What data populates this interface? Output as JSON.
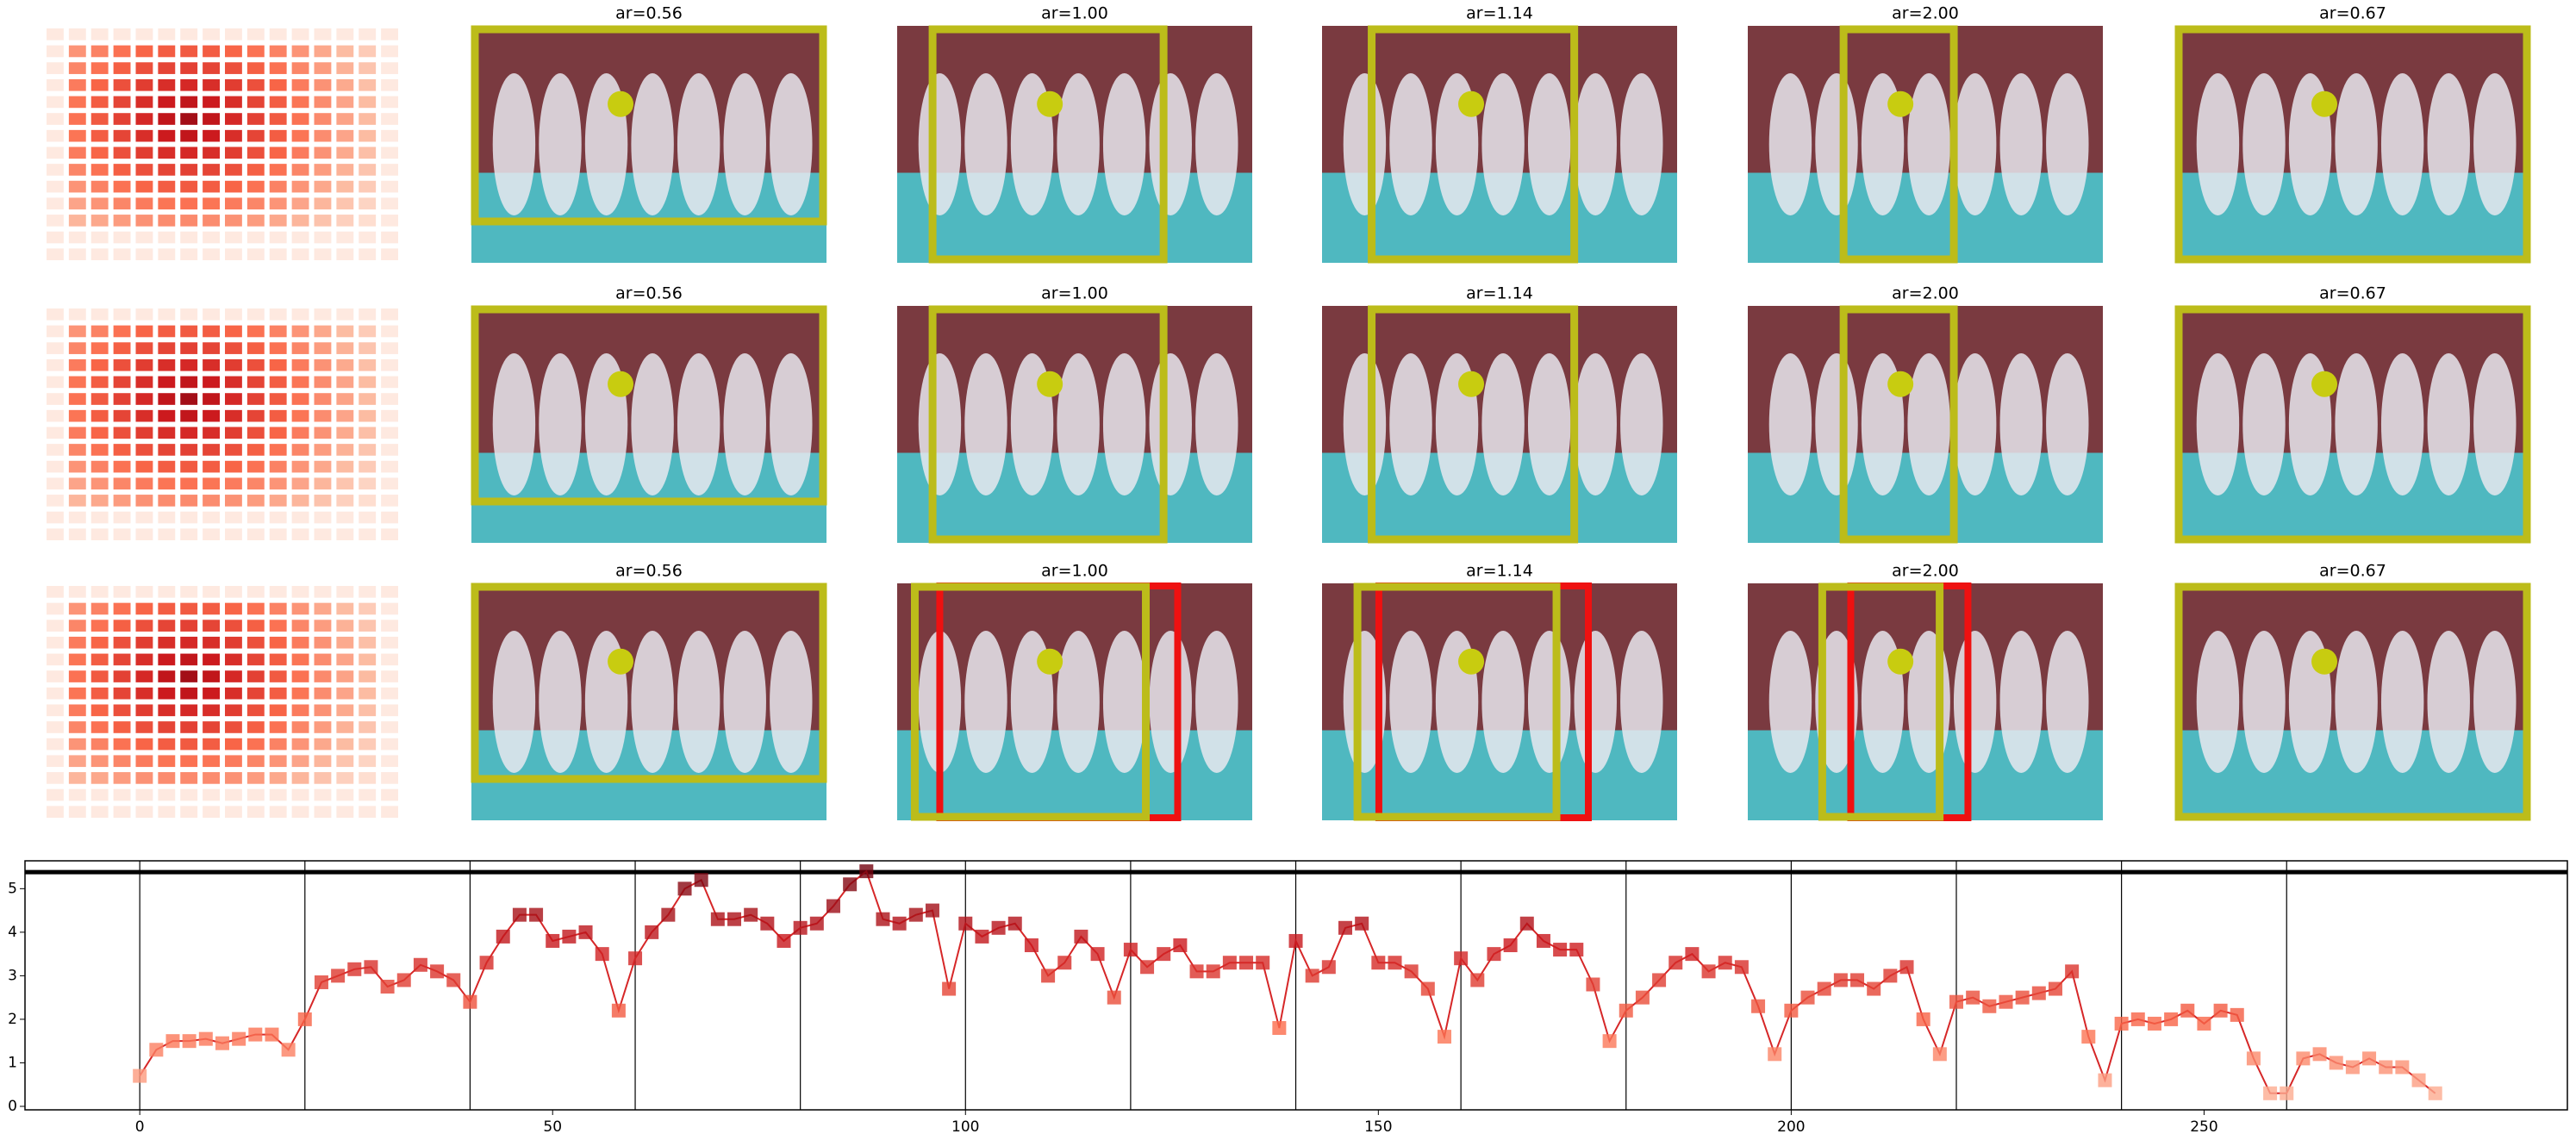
{
  "panel_titles": [
    [
      "ar=0.56",
      "ar=1.00",
      "ar=1.14",
      "ar=2.00",
      "ar=0.67"
    ],
    [
      "ar=0.56",
      "ar=1.00",
      "ar=1.14",
      "ar=2.00",
      "ar=0.67"
    ],
    [
      "ar=0.56",
      "ar=1.00",
      "ar=1.14",
      "ar=2.00",
      "ar=0.67"
    ]
  ],
  "chart_data": {
    "type": "line",
    "colormap": "Reds",
    "line_color": "#d62728",
    "x": [
      0,
      2,
      4,
      6,
      8,
      10,
      12,
      14,
      16,
      18,
      20,
      22,
      24,
      26,
      28,
      30,
      32,
      34,
      36,
      38,
      40,
      42,
      44,
      46,
      48,
      50,
      52,
      54,
      56,
      58,
      60,
      62,
      64,
      66,
      68,
      70,
      72,
      74,
      76,
      78,
      80,
      82,
      84,
      86,
      88,
      90,
      92,
      94,
      96,
      98,
      100,
      102,
      104,
      106,
      108,
      110,
      112,
      114,
      116,
      118,
      120,
      122,
      124,
      126,
      128,
      130,
      132,
      134,
      136,
      138,
      140,
      142,
      144,
      146,
      148,
      150,
      152,
      154,
      156,
      158,
      160,
      162,
      164,
      166,
      168,
      170,
      172,
      174,
      176,
      178,
      180,
      182,
      184,
      186,
      188,
      190,
      192,
      194,
      196,
      198,
      200,
      202,
      204,
      206,
      208,
      210,
      212,
      214,
      216,
      218,
      220,
      222,
      224,
      226,
      228,
      230,
      232,
      234,
      236,
      238,
      240,
      242,
      244,
      246,
      248,
      250,
      252,
      254,
      256,
      258,
      260,
      262,
      264,
      266,
      268,
      270,
      272,
      274,
      276,
      278
    ],
    "values": [
      0.7,
      1.3,
      1.5,
      1.5,
      1.55,
      1.45,
      1.55,
      1.65,
      1.65,
      1.3,
      2.0,
      2.85,
      3.0,
      3.15,
      3.2,
      2.75,
      2.9,
      3.25,
      3.1,
      2.9,
      2.4,
      3.3,
      3.9,
      4.4,
      4.4,
      3.8,
      3.9,
      4.0,
      3.5,
      2.2,
      3.4,
      4.0,
      4.4,
      5.0,
      5.2,
      4.3,
      4.3,
      4.4,
      4.2,
      3.8,
      4.1,
      4.2,
      4.6,
      5.1,
      5.4,
      4.3,
      4.2,
      4.4,
      4.5,
      2.7,
      4.2,
      3.9,
      4.1,
      4.2,
      3.7,
      3.0,
      3.3,
      3.9,
      3.5,
      2.5,
      3.6,
      3.2,
      3.5,
      3.7,
      3.1,
      3.1,
      3.3,
      3.3,
      3.3,
      1.8,
      3.8,
      3.0,
      3.2,
      4.1,
      4.2,
      3.3,
      3.3,
      3.1,
      2.7,
      1.6,
      3.4,
      2.9,
      3.5,
      3.7,
      4.2,
      3.8,
      3.6,
      3.6,
      2.8,
      1.5,
      2.2,
      2.5,
      2.9,
      3.3,
      3.5,
      3.1,
      3.3,
      3.2,
      2.3,
      1.2,
      2.2,
      2.5,
      2.7,
      2.9,
      2.9,
      2.7,
      3.0,
      3.2,
      2.0,
      1.2,
      2.4,
      2.5,
      2.3,
      2.4,
      2.5,
      2.6,
      2.7,
      3.1,
      1.6,
      0.6,
      1.9,
      2.0,
      1.9,
      2.0,
      2.2,
      1.9,
      2.2,
      2.1,
      1.1,
      0.3,
      0.3,
      1.1,
      1.2,
      1.0,
      0.9,
      1.1,
      0.9,
      0.9,
      0.6,
      0.3
    ],
    "xlim": [
      -13.9,
      294
    ],
    "ylim": [
      -0.08,
      5.64
    ],
    "xticks": [
      0,
      50,
      100,
      150,
      200,
      250
    ],
    "yticks": [
      0,
      1,
      2,
      3,
      4,
      5
    ],
    "vlines": [
      0,
      20,
      40,
      60,
      80,
      100,
      120,
      140,
      160,
      180,
      200,
      220,
      240,
      260
    ],
    "hline": 5.38
  }
}
